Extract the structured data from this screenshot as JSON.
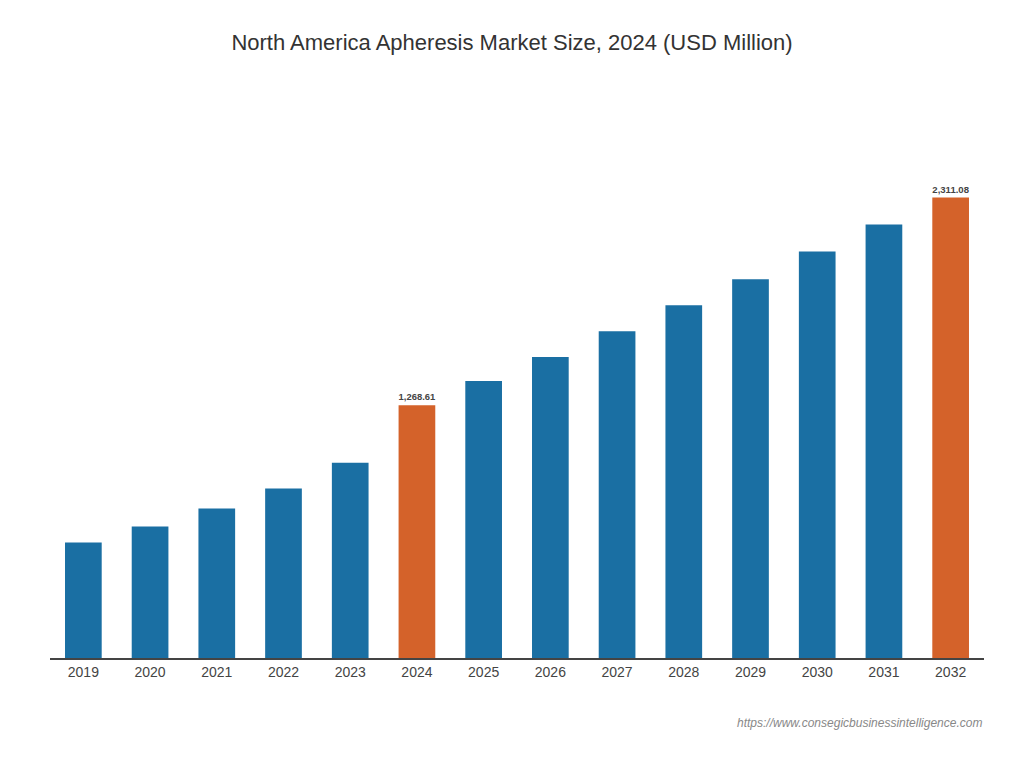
{
  "chart_data": {
    "type": "bar",
    "title": "North America Apheresis Market Size, 2024 (USD Million)",
    "categories": [
      "2019",
      "2020",
      "2021",
      "2022",
      "2023",
      "2024",
      "2025",
      "2026",
      "2027",
      "2028",
      "2029",
      "2030",
      "2031",
      "2032"
    ],
    "values": [
      580,
      660,
      750,
      850,
      980,
      1268.61,
      1390,
      1510,
      1640,
      1770,
      1900,
      2040,
      2175,
      2311.08
    ],
    "value_labels": [
      null,
      null,
      null,
      null,
      null,
      "1,268.61",
      null,
      null,
      null,
      null,
      null,
      null,
      null,
      "2,311.08"
    ],
    "colors": [
      "#1a6fa3",
      "#1a6fa3",
      "#1a6fa3",
      "#1a6fa3",
      "#1a6fa3",
      "#d4622a",
      "#1a6fa3",
      "#1a6fa3",
      "#1a6fa3",
      "#1a6fa3",
      "#1a6fa3",
      "#1a6fa3",
      "#1a6fa3",
      "#d4622a"
    ],
    "ylim": [
      0,
      2800
    ],
    "tick_labels": "x",
    "grid": false,
    "annotations": [
      "https://www.consegicbusinessintelligence.com"
    ]
  }
}
